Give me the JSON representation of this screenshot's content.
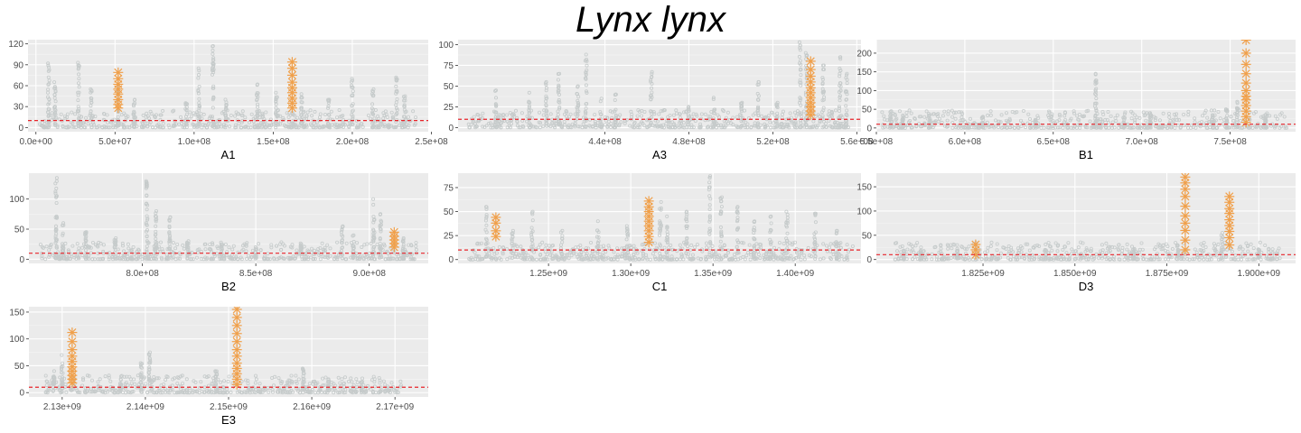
{
  "title": "Lynx lynx",
  "colors": {
    "panel_bg": "#EBEBEB",
    "grid_major": "#FFFFFF",
    "background_points": "#C6CBCB",
    "highlight_points": "#F0A04B",
    "threshold_line": "#E8242A"
  },
  "threshold": 10,
  "chart_data": [
    {
      "type": "scatter",
      "xlabel": "A1",
      "xlim": [
        -5000000,
        248000000
      ],
      "ylim": [
        -6,
        126
      ],
      "xticks": [
        0,
        50000000,
        100000000,
        150000000,
        200000000,
        250000000
      ],
      "xtick_labels": [
        "0.0e+00",
        "5.0e+07",
        "1.0e+08",
        "1.5e+08",
        "2.0e+08",
        "2.5e+08"
      ],
      "yticks": [
        0,
        30,
        60,
        90,
        120
      ],
      "ytick_labels": [
        "0",
        "30",
        "60",
        "90",
        "120"
      ],
      "background_range": [
        2000000,
        241000000
      ],
      "spikes": [
        [
          8000000,
          92
        ],
        [
          12000000,
          65
        ],
        [
          27000000,
          93
        ],
        [
          35000000,
          55
        ],
        [
          52000000,
          60
        ],
        [
          62000000,
          40
        ],
        [
          95000000,
          35
        ],
        [
          103000000,
          85
        ],
        [
          112000000,
          117
        ],
        [
          120000000,
          40
        ],
        [
          140000000,
          62
        ],
        [
          152000000,
          50
        ],
        [
          168000000,
          48
        ],
        [
          185000000,
          40
        ],
        [
          200000000,
          70
        ],
        [
          213000000,
          55
        ],
        [
          228000000,
          72
        ],
        [
          233000000,
          45
        ]
      ],
      "highlights": [
        {
          "x": 52000000,
          "values": [
            79,
            70,
            62,
            55,
            48,
            40,
            33,
            28
          ]
        },
        {
          "x": 162000000,
          "values": [
            94,
            85,
            75,
            65,
            57,
            50,
            42,
            35,
            28
          ]
        }
      ]
    },
    {
      "type": "scatter",
      "xlabel": "A3",
      "xlim": [
        370000000,
        562000000
      ],
      "ylim": [
        -5,
        106
      ],
      "xticks": [
        440000000,
        480000000,
        520000000,
        560000000
      ],
      "xtick_labels": [
        "4.4e+08",
        "4.8e+08",
        "5.2e+08",
        "5.6e+08"
      ],
      "yticks": [
        0,
        25,
        50,
        75,
        100
      ],
      "ytick_labels": [
        "0",
        "25",
        "50",
        "75",
        "100"
      ],
      "background_range": [
        375000000,
        556000000
      ],
      "spikes": [
        [
          388000000,
          45
        ],
        [
          404000000,
          42
        ],
        [
          412000000,
          55
        ],
        [
          418000000,
          65
        ],
        [
          427000000,
          50
        ],
        [
          431000000,
          88
        ],
        [
          438000000,
          35
        ],
        [
          445000000,
          40
        ],
        [
          462000000,
          67
        ],
        [
          480000000,
          25
        ],
        [
          492000000,
          36
        ],
        [
          505000000,
          30
        ],
        [
          513000000,
          55
        ],
        [
          522000000,
          30
        ],
        [
          533000000,
          103
        ],
        [
          536000000,
          90
        ],
        [
          544000000,
          75
        ],
        [
          552000000,
          85
        ],
        [
          555000000,
          65
        ]
      ],
      "highlights": [
        {
          "x": 538000000,
          "values": [
            80,
            70,
            62,
            55,
            48,
            42,
            36,
            30,
            25,
            20,
            15
          ]
        }
      ]
    },
    {
      "type": "scatter",
      "xlabel": "B1",
      "xlim": [
        550000000,
        787000000
      ],
      "ylim": [
        -10,
        236
      ],
      "xticks": [
        550000000,
        600000000,
        650000000,
        700000000,
        750000000
      ],
      "xtick_labels": [
        "5.5e+08",
        "6.0e+08",
        "6.5e+08",
        "7.0e+08",
        "7.5e+08"
      ],
      "yticks": [
        0,
        50,
        100,
        150,
        200
      ],
      "ytick_labels": [
        "0",
        "50",
        "100",
        "150",
        "200"
      ],
      "background_range": [
        553000000,
        782000000
      ],
      "spikes": [
        [
          558000000,
          45
        ],
        [
          565000000,
          30
        ],
        [
          580000000,
          38
        ],
        [
          610000000,
          30
        ],
        [
          640000000,
          22
        ],
        [
          674000000,
          145
        ],
        [
          690000000,
          28
        ],
        [
          705000000,
          40
        ],
        [
          740000000,
          30
        ],
        [
          748000000,
          50
        ],
        [
          754000000,
          70
        ],
        [
          770000000,
          35
        ]
      ],
      "highlights": [
        {
          "x": 759000000,
          "values": [
            235,
            200,
            170,
            145,
            120,
            100,
            85,
            75,
            60,
            45,
            30,
            15
          ]
        }
      ]
    },
    {
      "type": "scatter",
      "xlabel": "B2",
      "xlim": [
        750000000,
        926000000
      ],
      "ylim": [
        -7,
        143
      ],
      "xticks": [
        800000000,
        850000000,
        900000000
      ],
      "xtick_labels": [
        "8.0e+08",
        "8.5e+08",
        "9.0e+08"
      ],
      "yticks": [
        0,
        50,
        100
      ],
      "ytick_labels": [
        "0",
        "50",
        "100"
      ],
      "background_range": [
        755000000,
        921000000
      ],
      "spikes": [
        [
          762000000,
          135
        ],
        [
          765000000,
          60
        ],
        [
          775000000,
          45
        ],
        [
          788000000,
          35
        ],
        [
          802000000,
          130
        ],
        [
          806000000,
          80
        ],
        [
          812000000,
          70
        ],
        [
          820000000,
          30
        ],
        [
          835000000,
          25
        ],
        [
          850000000,
          20
        ],
        [
          870000000,
          25
        ],
        [
          888000000,
          55
        ],
        [
          893000000,
          40
        ],
        [
          902000000,
          100
        ],
        [
          905000000,
          75
        ],
        [
          915000000,
          35
        ]
      ],
      "highlights": [
        {
          "x": 911000000,
          "values": [
            45,
            38,
            32,
            26,
            20
          ]
        }
      ]
    },
    {
      "type": "scatter",
      "xlabel": "C1",
      "xlim": [
        1195000000,
        1440000000
      ],
      "ylim": [
        -4,
        90
      ],
      "xticks": [
        1250000000,
        1300000000,
        1350000000,
        1400000000
      ],
      "xtick_labels": [
        "1.25e+09",
        "1.30e+09",
        "1.35e+09",
        "1.40e+09"
      ],
      "yticks": [
        0,
        25,
        50,
        75
      ],
      "ytick_labels": [
        "0",
        "25",
        "50",
        "75"
      ],
      "background_range": [
        1200000000,
        1435000000
      ],
      "spikes": [
        [
          1212000000,
          55
        ],
        [
          1228000000,
          30
        ],
        [
          1240000000,
          50
        ],
        [
          1258000000,
          30
        ],
        [
          1280000000,
          40
        ],
        [
          1298000000,
          35
        ],
        [
          1318000000,
          60
        ],
        [
          1322000000,
          45
        ],
        [
          1334000000,
          50
        ],
        [
          1348000000,
          87
        ],
        [
          1355000000,
          65
        ],
        [
          1365000000,
          55
        ],
        [
          1375000000,
          40
        ],
        [
          1385000000,
          45
        ],
        [
          1395000000,
          50
        ],
        [
          1412000000,
          48
        ],
        [
          1425000000,
          30
        ]
      ],
      "highlights": [
        {
          "x": 1218000000,
          "values": [
            44,
            38,
            30,
            24
          ]
        },
        {
          "x": 1311000000,
          "values": [
            61,
            55,
            50,
            45,
            40,
            35,
            30,
            24,
            18
          ]
        }
      ]
    },
    {
      "type": "scatter",
      "xlabel": "D3",
      "xlim": [
        1796000000,
        1910000000
      ],
      "ylim": [
        -8,
        178
      ],
      "xticks": [
        1825000000,
        1850000000,
        1875000000,
        1900000000
      ],
      "xtick_labels": [
        "1.825e+09",
        "1.850e+09",
        "1.875e+09",
        "1.900e+09"
      ],
      "yticks": [
        0,
        50,
        100,
        150
      ],
      "ytick_labels": [
        "0",
        "50",
        "100",
        "150"
      ],
      "background_range": [
        1801000000,
        1906000000
      ],
      "spikes": [
        [
          1808000000,
          18
        ],
        [
          1818000000,
          30
        ],
        [
          1842000000,
          20
        ],
        [
          1866000000,
          22
        ],
        [
          1878000000,
          30
        ],
        [
          1890000000,
          55
        ],
        [
          1900000000,
          20
        ]
      ],
      "highlights": [
        {
          "x": 1823000000,
          "values": [
            31,
            20,
            10
          ]
        },
        {
          "x": 1880000000,
          "values": [
            170,
            158,
            145,
            130,
            110,
            90,
            75,
            60,
            40,
            20
          ]
        },
        {
          "x": 1892000000,
          "values": [
            130,
            118,
            105,
            95,
            82,
            70,
            58,
            45,
            30
          ]
        }
      ]
    },
    {
      "type": "scatter",
      "xlabel": "E3",
      "xlim": [
        2126000000,
        2174000000
      ],
      "ylim": [
        -8,
        160
      ],
      "xticks": [
        2130000000,
        2140000000,
        2150000000,
        2160000000,
        2170000000
      ],
      "xtick_labels": [
        "2.13e+09",
        "2.14e+09",
        "2.15e+09",
        "2.16e+09",
        "2.17e+09"
      ],
      "yticks": [
        0,
        50,
        100,
        150
      ],
      "ytick_labels": [
        "0",
        "50",
        "100",
        "150"
      ],
      "background_range": [
        2128000000,
        2171000000
      ],
      "spikes": [
        [
          2129000000,
          40
        ],
        [
          2130000000,
          70
        ],
        [
          2137000000,
          30
        ],
        [
          2139500000,
          55
        ],
        [
          2140500000,
          75
        ],
        [
          2148500000,
          40
        ],
        [
          2159000000,
          45
        ],
        [
          2162000000,
          25
        ],
        [
          2166000000,
          20
        ]
      ],
      "highlights": [
        {
          "x": 2131200000,
          "values": [
            112,
            95,
            80,
            68,
            58,
            48,
            40,
            32,
            25,
            18
          ]
        },
        {
          "x": 2151000000,
          "values": [
            155,
            140,
            125,
            110,
            95,
            80,
            68,
            55,
            45,
            35,
            25,
            15
          ]
        }
      ]
    }
  ]
}
